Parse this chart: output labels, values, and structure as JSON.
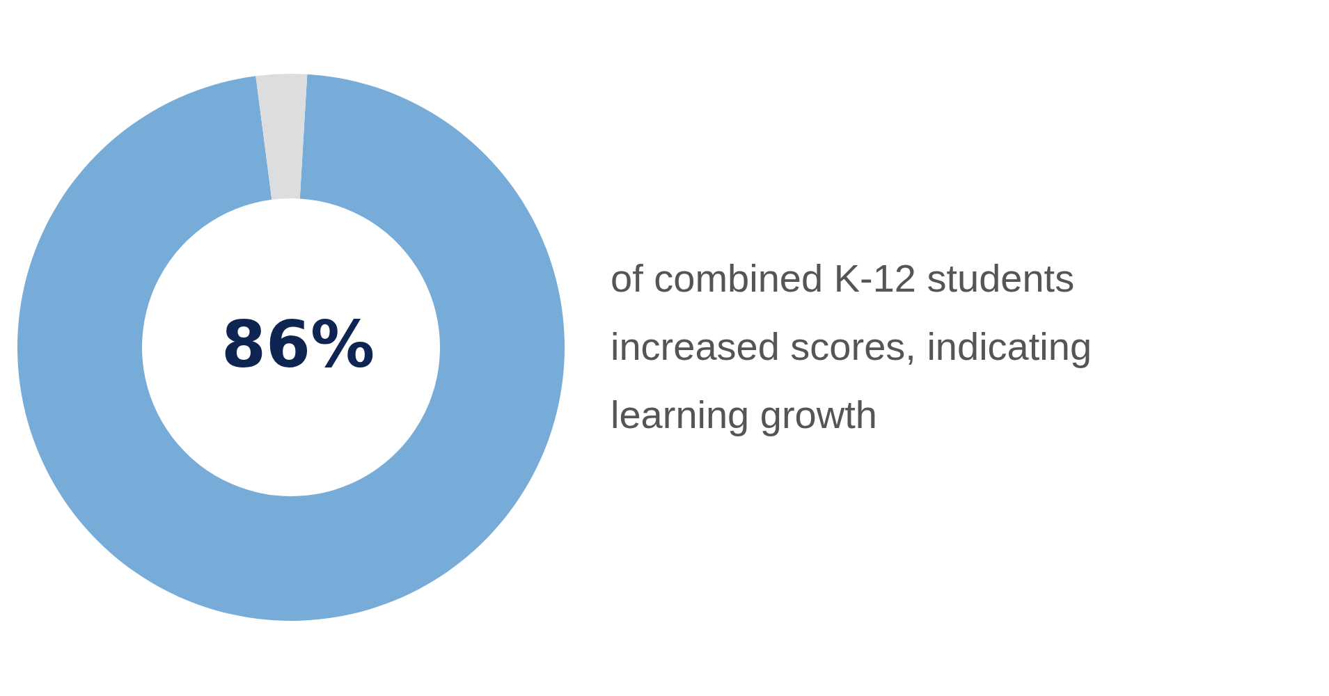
{
  "chart_data": {
    "type": "donut",
    "categories": [
      null,
      null
    ],
    "values": [
      97,
      3
    ],
    "colors": [
      "#78acd8",
      "#dcdddf"
    ],
    "annotations": [
      "86%",
      "of combined K-12 students increased scores, indicating learning growth"
    ]
  }
}
